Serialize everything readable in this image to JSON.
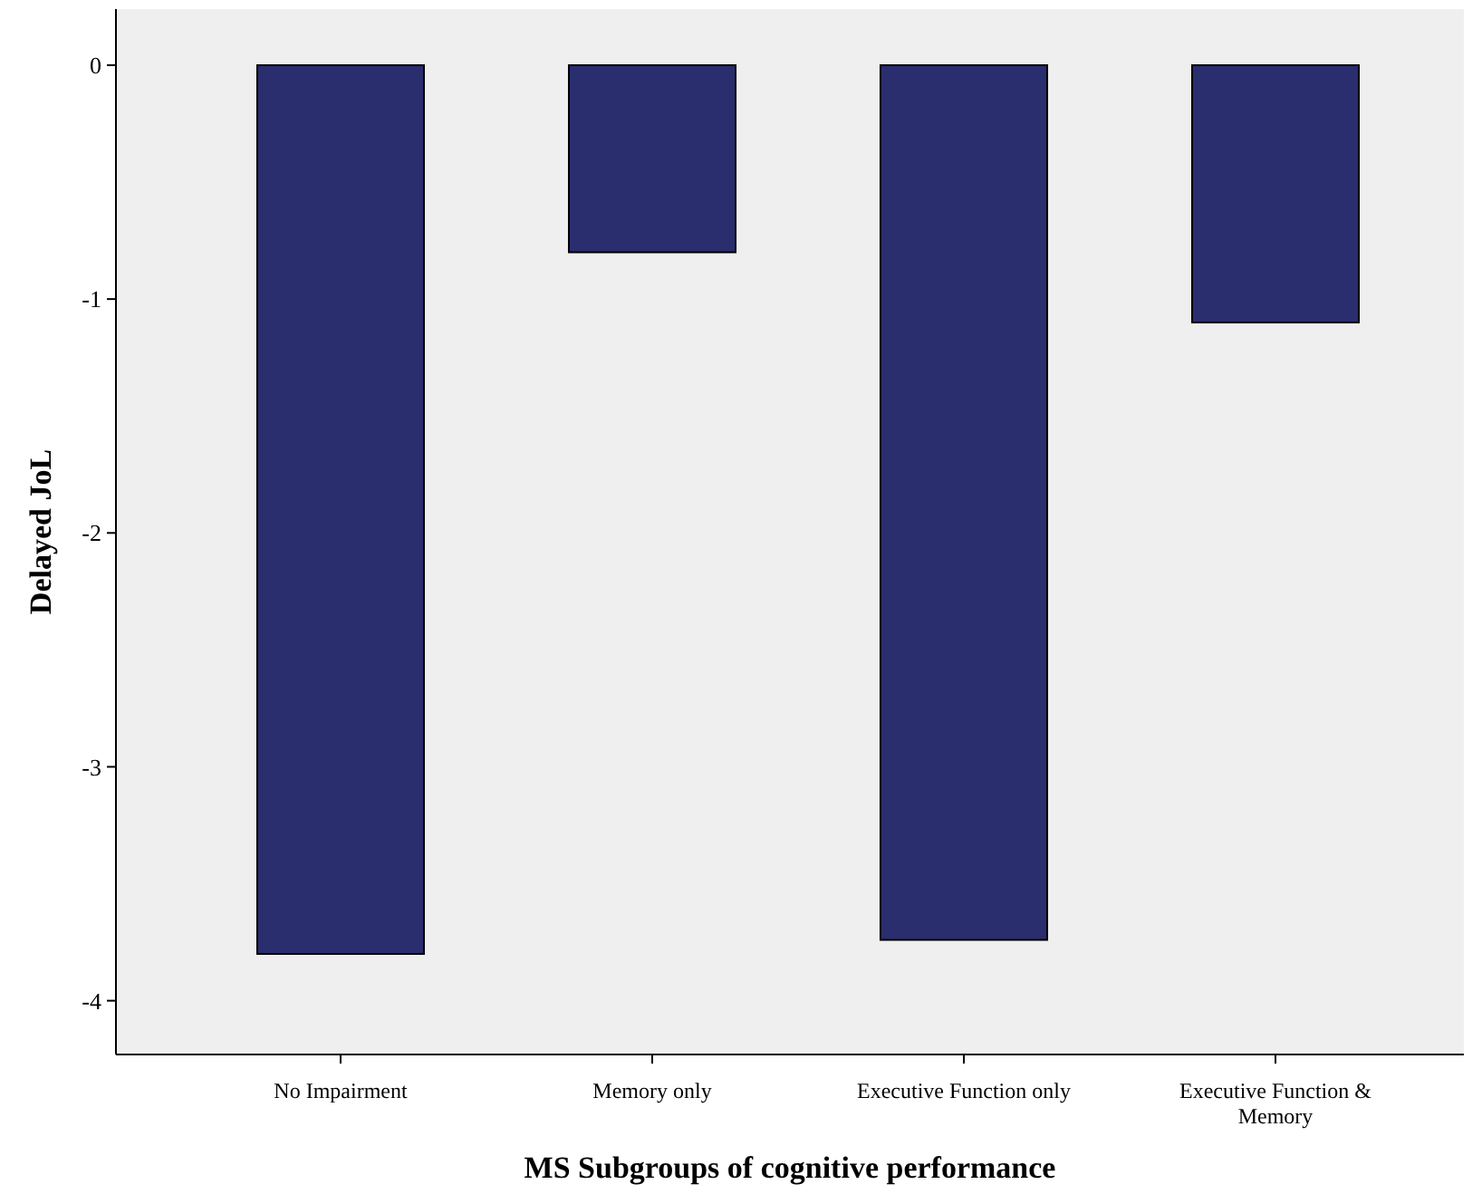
{
  "chart_data": {
    "type": "bar",
    "xlabel": "MS Subgroups of cognitive performance",
    "ylabel": "Delayed JoL",
    "categories": [
      "No Impairment",
      "Memory only",
      "Executive Function only",
      "Executive Function & Memory"
    ],
    "values": [
      -3.8,
      -0.8,
      -3.74,
      -1.1
    ],
    "color": "#2a2d6e",
    "ylim": [
      -4.23,
      0.24
    ],
    "yticks": [
      0,
      -1,
      -2,
      -3,
      -4
    ],
    "grid": false
  }
}
